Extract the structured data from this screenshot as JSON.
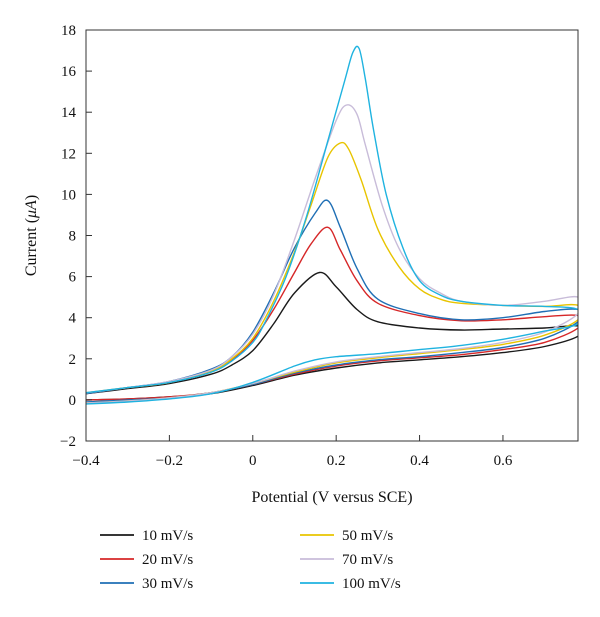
{
  "chart_data": {
    "type": "line",
    "title": "",
    "xlabel": "Potential (V versus SCE)",
    "ylabel_main": "Current (",
    "ylabel_unit": "μA",
    "ylabel_end": ")",
    "xlim": [
      -0.4,
      0.78
    ],
    "ylim": [
      -2,
      18
    ],
    "x_ticks": [
      -0.4,
      -0.2,
      0,
      0.2,
      0.4,
      0.6
    ],
    "x_tick_labels": [
      "−0.4",
      "−0.2",
      "0",
      "0.2",
      "0.4",
      "0.6"
    ],
    "y_ticks": [
      -2,
      0,
      2,
      4,
      6,
      8,
      10,
      12,
      14,
      16,
      18
    ],
    "y_tick_labels": [
      "−2",
      "0",
      "2",
      "4",
      "6",
      "8",
      "10",
      "12",
      "14",
      "16",
      "18"
    ],
    "grid": false,
    "legend_position": "bottom",
    "series": [
      {
        "name": "10 mV/s",
        "color": "#1a1a1a",
        "forward": [
          [
            -0.4,
            0.0
          ],
          [
            -0.3,
            0.05
          ],
          [
            -0.2,
            0.15
          ],
          [
            -0.1,
            0.3
          ],
          [
            0.0,
            0.7
          ],
          [
            0.1,
            1.2
          ],
          [
            0.2,
            1.55
          ],
          [
            0.3,
            1.8
          ],
          [
            0.4,
            1.95
          ],
          [
            0.5,
            2.1
          ],
          [
            0.6,
            2.3
          ],
          [
            0.7,
            2.6
          ],
          [
            0.78,
            3.1
          ]
        ],
        "reverse": [
          [
            0.78,
            3.6
          ],
          [
            0.7,
            3.5
          ],
          [
            0.6,
            3.45
          ],
          [
            0.5,
            3.4
          ],
          [
            0.4,
            3.5
          ],
          [
            0.3,
            3.8
          ],
          [
            0.25,
            4.4
          ],
          [
            0.2,
            5.5
          ],
          [
            0.16,
            6.2
          ],
          [
            0.1,
            5.2
          ],
          [
            0.05,
            3.7
          ],
          [
            0.0,
            2.4
          ],
          [
            -0.05,
            1.7
          ],
          [
            -0.1,
            1.25
          ],
          [
            -0.2,
            0.8
          ],
          [
            -0.3,
            0.55
          ],
          [
            -0.4,
            0.3
          ]
        ]
      },
      {
        "name": "20 mV/s",
        "color": "#d62728",
        "forward": [
          [
            -0.4,
            0.0
          ],
          [
            -0.3,
            0.05
          ],
          [
            -0.2,
            0.15
          ],
          [
            -0.1,
            0.35
          ],
          [
            0.0,
            0.75
          ],
          [
            0.1,
            1.25
          ],
          [
            0.2,
            1.65
          ],
          [
            0.3,
            1.9
          ],
          [
            0.4,
            2.05
          ],
          [
            0.5,
            2.2
          ],
          [
            0.6,
            2.45
          ],
          [
            0.7,
            2.8
          ],
          [
            0.78,
            3.5
          ]
        ],
        "reverse": [
          [
            0.78,
            4.1
          ],
          [
            0.7,
            4.05
          ],
          [
            0.6,
            3.9
          ],
          [
            0.5,
            3.85
          ],
          [
            0.4,
            4.1
          ],
          [
            0.3,
            4.7
          ],
          [
            0.25,
            5.8
          ],
          [
            0.21,
            7.3
          ],
          [
            0.18,
            8.4
          ],
          [
            0.14,
            7.6
          ],
          [
            0.1,
            6.2
          ],
          [
            0.05,
            4.4
          ],
          [
            0.0,
            2.9
          ],
          [
            -0.05,
            1.95
          ],
          [
            -0.1,
            1.4
          ],
          [
            -0.2,
            0.85
          ],
          [
            -0.3,
            0.6
          ],
          [
            -0.4,
            0.3
          ]
        ]
      },
      {
        "name": "30 mV/s",
        "color": "#1f6fb5",
        "forward": [
          [
            -0.4,
            -0.1
          ],
          [
            -0.3,
            0.0
          ],
          [
            -0.2,
            0.1
          ],
          [
            -0.1,
            0.35
          ],
          [
            0.0,
            0.75
          ],
          [
            0.1,
            1.3
          ],
          [
            0.2,
            1.7
          ],
          [
            0.3,
            1.95
          ],
          [
            0.4,
            2.1
          ],
          [
            0.5,
            2.3
          ],
          [
            0.6,
            2.55
          ],
          [
            0.7,
            3.0
          ],
          [
            0.78,
            3.8
          ]
        ],
        "reverse": [
          [
            0.78,
            4.4
          ],
          [
            0.7,
            4.3
          ],
          [
            0.6,
            4.0
          ],
          [
            0.5,
            3.9
          ],
          [
            0.4,
            4.2
          ],
          [
            0.3,
            4.9
          ],
          [
            0.25,
            6.4
          ],
          [
            0.21,
            8.4
          ],
          [
            0.18,
            9.7
          ],
          [
            0.15,
            9.1
          ],
          [
            0.1,
            7.4
          ],
          [
            0.05,
            5.2
          ],
          [
            0.0,
            3.3
          ],
          [
            -0.05,
            2.1
          ],
          [
            -0.1,
            1.5
          ],
          [
            -0.2,
            0.9
          ],
          [
            -0.3,
            0.6
          ],
          [
            -0.4,
            0.3
          ]
        ]
      },
      {
        "name": "50 mV/s",
        "color": "#e8c400",
        "forward": [
          [
            -0.4,
            -0.15
          ],
          [
            -0.3,
            -0.05
          ],
          [
            -0.2,
            0.1
          ],
          [
            -0.1,
            0.35
          ],
          [
            0.0,
            0.8
          ],
          [
            0.1,
            1.35
          ],
          [
            0.2,
            1.8
          ],
          [
            0.3,
            2.05
          ],
          [
            0.4,
            2.25
          ],
          [
            0.5,
            2.45
          ],
          [
            0.6,
            2.7
          ],
          [
            0.7,
            3.15
          ],
          [
            0.78,
            3.9
          ]
        ],
        "reverse": [
          [
            0.78,
            4.6
          ],
          [
            0.7,
            4.55
          ],
          [
            0.6,
            4.6
          ],
          [
            0.5,
            4.7
          ],
          [
            0.45,
            4.9
          ],
          [
            0.4,
            5.4
          ],
          [
            0.35,
            6.5
          ],
          [
            0.3,
            8.3
          ],
          [
            0.26,
            10.7
          ],
          [
            0.23,
            12.2
          ],
          [
            0.21,
            12.5
          ],
          [
            0.18,
            11.8
          ],
          [
            0.14,
            9.5
          ],
          [
            0.1,
            7.2
          ],
          [
            0.05,
            4.8
          ],
          [
            0.0,
            3.0
          ],
          [
            -0.05,
            2.0
          ],
          [
            -0.1,
            1.4
          ],
          [
            -0.2,
            0.85
          ],
          [
            -0.3,
            0.6
          ],
          [
            -0.4,
            0.35
          ]
        ]
      },
      {
        "name": "70 mV/s",
        "color": "#c8bcd9",
        "forward": [
          [
            -0.4,
            -0.15
          ],
          [
            -0.3,
            -0.05
          ],
          [
            -0.2,
            0.1
          ],
          [
            -0.1,
            0.35
          ],
          [
            0.0,
            0.8
          ],
          [
            0.1,
            1.4
          ],
          [
            0.2,
            1.85
          ],
          [
            0.3,
            2.1
          ],
          [
            0.4,
            2.3
          ],
          [
            0.5,
            2.5
          ],
          [
            0.6,
            2.8
          ],
          [
            0.7,
            3.3
          ],
          [
            0.78,
            4.2
          ]
        ],
        "reverse": [
          [
            0.78,
            5.0
          ],
          [
            0.7,
            4.8
          ],
          [
            0.6,
            4.6
          ],
          [
            0.5,
            4.8
          ],
          [
            0.45,
            5.2
          ],
          [
            0.4,
            5.9
          ],
          [
            0.35,
            7.4
          ],
          [
            0.31,
            9.5
          ],
          [
            0.27,
            12.4
          ],
          [
            0.25,
            13.9
          ],
          [
            0.225,
            14.35
          ],
          [
            0.2,
            13.6
          ],
          [
            0.15,
            10.8
          ],
          [
            0.1,
            7.8
          ],
          [
            0.05,
            5.1
          ],
          [
            0.0,
            3.2
          ],
          [
            -0.05,
            2.1
          ],
          [
            -0.1,
            1.45
          ],
          [
            -0.2,
            0.9
          ],
          [
            -0.3,
            0.6
          ],
          [
            -0.4,
            0.35
          ]
        ]
      },
      {
        "name": "100 mV/s",
        "color": "#1fb3e0",
        "forward": [
          [
            -0.4,
            -0.2
          ],
          [
            -0.3,
            -0.1
          ],
          [
            -0.2,
            0.05
          ],
          [
            -0.1,
            0.3
          ],
          [
            0.0,
            0.85
          ],
          [
            0.1,
            1.65
          ],
          [
            0.15,
            1.95
          ],
          [
            0.2,
            2.1
          ],
          [
            0.3,
            2.25
          ],
          [
            0.4,
            2.45
          ],
          [
            0.5,
            2.65
          ],
          [
            0.6,
            2.95
          ],
          [
            0.7,
            3.35
          ],
          [
            0.78,
            3.7
          ]
        ],
        "reverse": [
          [
            0.78,
            4.4
          ],
          [
            0.7,
            4.55
          ],
          [
            0.6,
            4.6
          ],
          [
            0.5,
            4.8
          ],
          [
            0.45,
            5.1
          ],
          [
            0.4,
            5.8
          ],
          [
            0.36,
            7.4
          ],
          [
            0.32,
            10.0
          ],
          [
            0.29,
            13.1
          ],
          [
            0.27,
            15.6
          ],
          [
            0.255,
            17.1
          ],
          [
            0.24,
            16.9
          ],
          [
            0.22,
            15.5
          ],
          [
            0.18,
            12.6
          ],
          [
            0.13,
            9.0
          ],
          [
            0.08,
            6.0
          ],
          [
            0.03,
            3.8
          ],
          [
            0.0,
            2.8
          ],
          [
            -0.05,
            1.9
          ],
          [
            -0.1,
            1.35
          ],
          [
            -0.2,
            0.85
          ],
          [
            -0.3,
            0.6
          ],
          [
            -0.4,
            0.35
          ]
        ]
      }
    ]
  }
}
